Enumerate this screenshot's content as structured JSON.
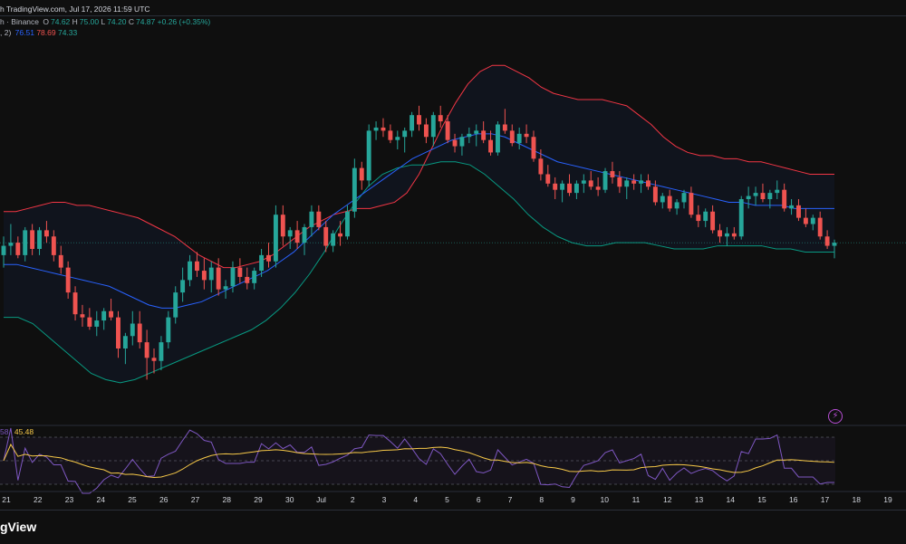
{
  "header": {
    "source": "h TradingView.com, Jul 17, 2026 11:59 UTC",
    "ohlc_prefix": "h · Binance",
    "open_label": "O",
    "open": "74.62",
    "high_label": "H",
    "high": "75.00",
    "low_label": "L",
    "low": "74.20",
    "close_label": "C",
    "close": "74.87",
    "change": "+0.26 (+0.35%)",
    "bb_prefix": ", 2)",
    "bb_basis": "76.51",
    "bb_upper": "78.69",
    "bb_lower": "74.33"
  },
  "rsi": {
    "value_a": "58",
    "value_b": "45.48"
  },
  "footer": {
    "brand": "gView"
  },
  "colors": {
    "up": "#26a69a",
    "down": "#ef5350",
    "basis": "#2962ff",
    "upper": "#f23645",
    "lower": "#089981",
    "rsi": "#7e57c2",
    "rsi_ma": "#f7c948"
  },
  "icons": {
    "alert": "lightning-bolt-icon"
  },
  "chart_data": {
    "type": "candlestick",
    "x_ticks": [
      "21",
      "22",
      "23",
      "24",
      "25",
      "26",
      "27",
      "28",
      "29",
      "30",
      "Jul",
      "2",
      "3",
      "4",
      "5",
      "6",
      "7",
      "8",
      "9",
      "10",
      "11",
      "12",
      "13",
      "14",
      "15",
      "16",
      "17",
      "18",
      "19"
    ],
    "candles": [
      [
        77.0,
        77.6,
        76.6,
        77.3
      ],
      [
        77.3,
        78.0,
        77.0,
        77.4
      ],
      [
        77.4,
        77.6,
        76.9,
        77.0
      ],
      [
        77.0,
        77.9,
        76.8,
        77.8
      ],
      [
        77.8,
        78.0,
        77.0,
        77.2
      ],
      [
        77.2,
        77.9,
        77.0,
        77.8
      ],
      [
        77.8,
        78.1,
        77.4,
        77.6
      ],
      [
        77.6,
        77.8,
        76.8,
        77.0
      ],
      [
        77.0,
        77.3,
        76.4,
        76.6
      ],
      [
        76.6,
        76.8,
        75.6,
        75.8
      ],
      [
        75.8,
        76.0,
        74.9,
        75.1
      ],
      [
        75.1,
        75.4,
        74.7,
        75.0
      ],
      [
        75.0,
        75.3,
        74.6,
        74.7
      ],
      [
        74.7,
        75.2,
        74.4,
        74.9
      ],
      [
        74.9,
        75.3,
        74.6,
        75.2
      ],
      [
        75.2,
        75.6,
        74.9,
        75.0
      ],
      [
        75.0,
        75.2,
        73.7,
        74.0
      ],
      [
        74.0,
        74.5,
        73.5,
        74.4
      ],
      [
        74.4,
        75.2,
        74.1,
        74.8
      ],
      [
        74.8,
        75.2,
        74.0,
        74.2
      ],
      [
        74.2,
        74.6,
        73.0,
        73.7
      ],
      [
        73.7,
        74.0,
        73.2,
        73.6
      ],
      [
        73.6,
        74.4,
        73.3,
        74.2
      ],
      [
        74.2,
        75.2,
        74.0,
        75.0
      ],
      [
        75.0,
        76.0,
        74.8,
        75.8
      ],
      [
        75.8,
        76.6,
        75.5,
        76.2
      ],
      [
        76.2,
        77.0,
        76.0,
        76.8
      ],
      [
        76.8,
        77.1,
        76.3,
        76.5
      ],
      [
        76.5,
        76.9,
        75.9,
        76.2
      ],
      [
        76.2,
        76.8,
        75.8,
        76.6
      ],
      [
        76.6,
        76.9,
        75.7,
        75.9
      ],
      [
        75.9,
        76.2,
        75.6,
        76.0
      ],
      [
        76.0,
        76.8,
        75.8,
        76.6
      ],
      [
        76.6,
        76.9,
        76.1,
        76.3
      ],
      [
        76.3,
        76.6,
        75.9,
        76.1
      ],
      [
        76.1,
        76.6,
        75.9,
        76.5
      ],
      [
        76.5,
        77.2,
        76.3,
        77.0
      ],
      [
        77.0,
        77.4,
        76.6,
        76.8
      ],
      [
        76.8,
        78.6,
        76.6,
        78.3
      ],
      [
        78.3,
        78.6,
        77.3,
        77.6
      ],
      [
        77.6,
        77.9,
        77.2,
        77.8
      ],
      [
        77.8,
        78.1,
        77.2,
        77.4
      ],
      [
        77.4,
        78.0,
        77.0,
        77.9
      ],
      [
        77.9,
        78.6,
        77.6,
        78.4
      ],
      [
        78.4,
        78.6,
        77.8,
        77.9
      ],
      [
        77.9,
        78.1,
        77.1,
        77.3
      ],
      [
        77.3,
        77.8,
        77.1,
        77.7
      ],
      [
        77.7,
        78.1,
        77.3,
        77.6
      ],
      [
        77.6,
        78.6,
        77.5,
        78.4
      ],
      [
        78.4,
        80.1,
        78.2,
        79.8
      ],
      [
        79.8,
        80.0,
        79.1,
        79.4
      ],
      [
        79.4,
        81.2,
        79.2,
        81.0
      ],
      [
        81.0,
        81.3,
        80.7,
        81.1
      ],
      [
        81.1,
        81.4,
        80.8,
        81.0
      ],
      [
        81.0,
        81.2,
        80.6,
        80.7
      ],
      [
        80.7,
        81.0,
        80.4,
        80.8
      ],
      [
        80.8,
        81.1,
        80.3,
        81.0
      ],
      [
        81.0,
        81.6,
        80.8,
        81.5
      ],
      [
        81.5,
        81.8,
        81.0,
        81.2
      ],
      [
        81.2,
        81.4,
        80.6,
        80.8
      ],
      [
        80.8,
        81.6,
        80.5,
        81.5
      ],
      [
        81.5,
        81.8,
        81.1,
        81.3
      ],
      [
        81.3,
        81.5,
        80.6,
        80.7
      ],
      [
        80.7,
        80.9,
        80.3,
        80.5
      ],
      [
        80.5,
        80.9,
        80.2,
        80.8
      ],
      [
        80.8,
        81.1,
        80.6,
        80.9
      ],
      [
        80.9,
        81.2,
        80.5,
        81.0
      ],
      [
        81.0,
        81.3,
        80.6,
        80.7
      ],
      [
        80.7,
        81.0,
        80.2,
        80.3
      ],
      [
        80.3,
        81.3,
        80.2,
        81.2
      ],
      [
        81.2,
        81.7,
        80.9,
        81.0
      ],
      [
        81.0,
        81.2,
        80.5,
        80.6
      ],
      [
        80.6,
        81.1,
        80.4,
        80.9
      ],
      [
        80.9,
        81.2,
        80.6,
        80.8
      ],
      [
        80.8,
        81.0,
        80.0,
        80.1
      ],
      [
        80.1,
        80.4,
        79.4,
        79.6
      ],
      [
        79.6,
        79.9,
        79.2,
        79.3
      ],
      [
        79.3,
        79.5,
        78.8,
        79.1
      ],
      [
        79.1,
        79.4,
        78.7,
        79.3
      ],
      [
        79.3,
        79.6,
        78.9,
        79.0
      ],
      [
        79.0,
        79.4,
        78.8,
        79.3
      ],
      [
        79.3,
        79.6,
        79.0,
        79.4
      ],
      [
        79.4,
        79.7,
        79.1,
        79.2
      ],
      [
        79.2,
        79.5,
        78.9,
        79.1
      ],
      [
        79.1,
        79.8,
        79.0,
        79.7
      ],
      [
        79.7,
        80.0,
        79.3,
        79.5
      ],
      [
        79.5,
        79.7,
        79.0,
        79.2
      ],
      [
        79.2,
        79.5,
        78.8,
        79.4
      ],
      [
        79.4,
        79.6,
        79.1,
        79.3
      ],
      [
        79.3,
        79.6,
        79.0,
        79.4
      ],
      [
        79.4,
        79.6,
        79.1,
        79.2
      ],
      [
        79.2,
        79.4,
        78.6,
        78.7
      ],
      [
        78.7,
        79.0,
        78.5,
        78.9
      ],
      [
        78.9,
        79.1,
        78.4,
        78.5
      ],
      [
        78.5,
        78.8,
        78.3,
        78.7
      ],
      [
        78.7,
        79.1,
        78.5,
        79.0
      ],
      [
        79.0,
        79.2,
        78.2,
        78.3
      ],
      [
        78.3,
        78.6,
        77.9,
        78.1
      ],
      [
        78.1,
        78.5,
        77.9,
        78.4
      ],
      [
        78.4,
        78.6,
        77.7,
        77.8
      ],
      [
        77.8,
        78.0,
        77.4,
        77.6
      ],
      [
        77.6,
        77.9,
        77.3,
        77.7
      ],
      [
        77.7,
        77.9,
        77.5,
        77.6
      ],
      [
        77.6,
        78.9,
        77.5,
        78.8
      ],
      [
        78.8,
        79.2,
        78.5,
        78.9
      ],
      [
        78.9,
        79.2,
        78.6,
        79.0
      ],
      [
        79.0,
        79.3,
        78.7,
        78.8
      ],
      [
        78.8,
        79.1,
        78.5,
        79.0
      ],
      [
        79.0,
        79.4,
        78.8,
        79.1
      ],
      [
        79.1,
        79.3,
        78.4,
        78.5
      ],
      [
        78.5,
        78.8,
        78.3,
        78.6
      ],
      [
        78.6,
        78.8,
        78.1,
        78.2
      ],
      [
        78.2,
        78.5,
        77.9,
        78.0
      ],
      [
        78.0,
        78.3,
        77.8,
        78.2
      ],
      [
        78.2,
        78.4,
        77.5,
        77.6
      ],
      [
        77.6,
        77.8,
        77.2,
        77.3
      ],
      [
        77.3,
        77.5,
        76.9,
        77.4
      ]
    ],
    "bb_upper": [
      78.4,
      78.4,
      78.5,
      78.6,
      78.7,
      78.7,
      78.6,
      78.6,
      78.5,
      78.4,
      78.3,
      78.2,
      78.0,
      77.8,
      77.6,
      77.3,
      77.0,
      76.8,
      76.6,
      76.6,
      76.7,
      76.8,
      77.0,
      77.3,
      77.6,
      77.9,
      78.1,
      78.3,
      78.4,
      78.5,
      78.5,
      78.6,
      78.7,
      79.0,
      79.6,
      80.4,
      81.2,
      81.9,
      82.5,
      82.9,
      83.1,
      83.1,
      82.9,
      82.7,
      82.4,
      82.2,
      82.1,
      82.0,
      82.0,
      82.0,
      81.9,
      81.8,
      81.5,
      81.2,
      80.8,
      80.5,
      80.3,
      80.2,
      80.2,
      80.1,
      80.1,
      80.0,
      80.0,
      79.9,
      79.8,
      79.7,
      79.6,
      79.6,
      79.6
    ],
    "bb_basis": [
      76.7,
      76.7,
      76.6,
      76.5,
      76.4,
      76.3,
      76.2,
      76.1,
      76.0,
      75.8,
      75.6,
      75.4,
      75.3,
      75.3,
      75.4,
      75.5,
      75.7,
      75.9,
      76.1,
      76.3,
      76.5,
      76.8,
      77.1,
      77.5,
      77.9,
      78.3,
      78.6,
      78.9,
      79.2,
      79.5,
      79.8,
      80.1,
      80.3,
      80.5,
      80.7,
      80.8,
      80.9,
      80.9,
      80.8,
      80.6,
      80.4,
      80.2,
      80.0,
      79.9,
      79.8,
      79.7,
      79.6,
      79.5,
      79.4,
      79.3,
      79.2,
      79.1,
      79.0,
      78.9,
      78.8,
      78.7,
      78.7,
      78.6,
      78.6,
      78.6,
      78.5,
      78.5,
      78.5,
      78.5
    ],
    "bb_lower": [
      75.0,
      75.0,
      74.8,
      74.4,
      74.0,
      73.6,
      73.2,
      73.0,
      72.9,
      73.0,
      73.2,
      73.4,
      73.6,
      73.8,
      74.0,
      74.2,
      74.4,
      74.6,
      74.9,
      75.3,
      75.8,
      76.4,
      77.1,
      77.9,
      78.6,
      79.2,
      79.6,
      79.8,
      79.9,
      79.9,
      80.0,
      80.0,
      79.9,
      79.6,
      79.2,
      78.8,
      78.3,
      77.9,
      77.6,
      77.4,
      77.3,
      77.3,
      77.4,
      77.4,
      77.4,
      77.3,
      77.2,
      77.2,
      77.2,
      77.3,
      77.3,
      77.3,
      77.3,
      77.2,
      77.2,
      77.1,
      77.1,
      77.1
    ]
  }
}
